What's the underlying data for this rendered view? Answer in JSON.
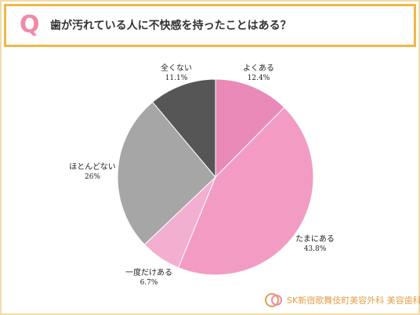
{
  "header": {
    "q_letter": "Q",
    "title": "歯が汚れている人に不快感を持ったことはある？"
  },
  "chart_data": {
    "type": "pie",
    "start": "12 o'clock, clockwise",
    "slices": [
      {
        "label": "よくある",
        "value": 12.4,
        "value_text": "12.4%",
        "color": "#e98ab8"
      },
      {
        "label": "たまにある",
        "value": 43.8,
        "value_text": "43.8%",
        "color": "#f29cc4"
      },
      {
        "label": "一度だけある",
        "value": 6.7,
        "value_text": "6.7%",
        "color": "#f3afd0"
      },
      {
        "label": "ほとんどない",
        "value": 26,
        "value_text": "26%",
        "color": "#a6a6a6"
      },
      {
        "label": "全くない",
        "value": 11.1,
        "value_text": "11.1%",
        "color": "#565656"
      }
    ]
  },
  "logo": {
    "text": "SK新宿歌舞伎町美容外科 美容歯科",
    "colors": [
      "#e2a04a",
      "#f08aa8"
    ]
  },
  "colors": {
    "header_border": "#f0b64a",
    "frame_border": "#f2dba8",
    "accent": "#f08aa8"
  }
}
